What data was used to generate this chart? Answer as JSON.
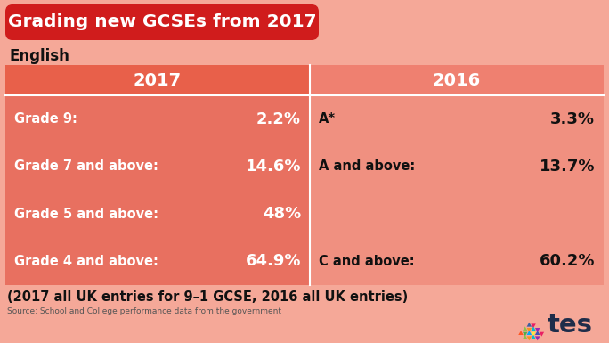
{
  "title": "Grading new GCSEs from 2017",
  "title_bg": "#d01c1c",
  "title_color": "#ffffff",
  "subject": "English",
  "bg_color": "#f5a898",
  "col2017_bg": "#e8604a",
  "col2017_data_bg": "#e87060",
  "col2016_bg": "#ef8070",
  "col2016_data_bg": "#f09080",
  "header_2017": "2017",
  "header_2016": "2016",
  "rows_2017": [
    {
      "label": "Grade 9:",
      "value": "2.2%"
    },
    {
      "label": "Grade 7 and above:",
      "value": "14.6%"
    },
    {
      "label": "Grade 5 and above:",
      "value": "48%"
    },
    {
      "label": "Grade 4 and above:",
      "value": "64.9%"
    }
  ],
  "rows_2016": [
    {
      "label": "A*",
      "value": "3.3%"
    },
    {
      "label": "A and above:",
      "value": "13.7%"
    },
    {
      "label": "",
      "value": ""
    },
    {
      "label": "C and above:",
      "value": "60.2%"
    }
  ],
  "footnote": "(2017 all UK entries for 9–1 GCSE, 2016 all UK entries)",
  "source": "Source: School and College performance data from the government",
  "label_color_2017": "#ffffff",
  "value_color_2017": "#ffffff",
  "label_color_2016": "#111111",
  "value_color_2016": "#111111",
  "header_color": "#ffffff",
  "tes_color": "#1e2d4a"
}
